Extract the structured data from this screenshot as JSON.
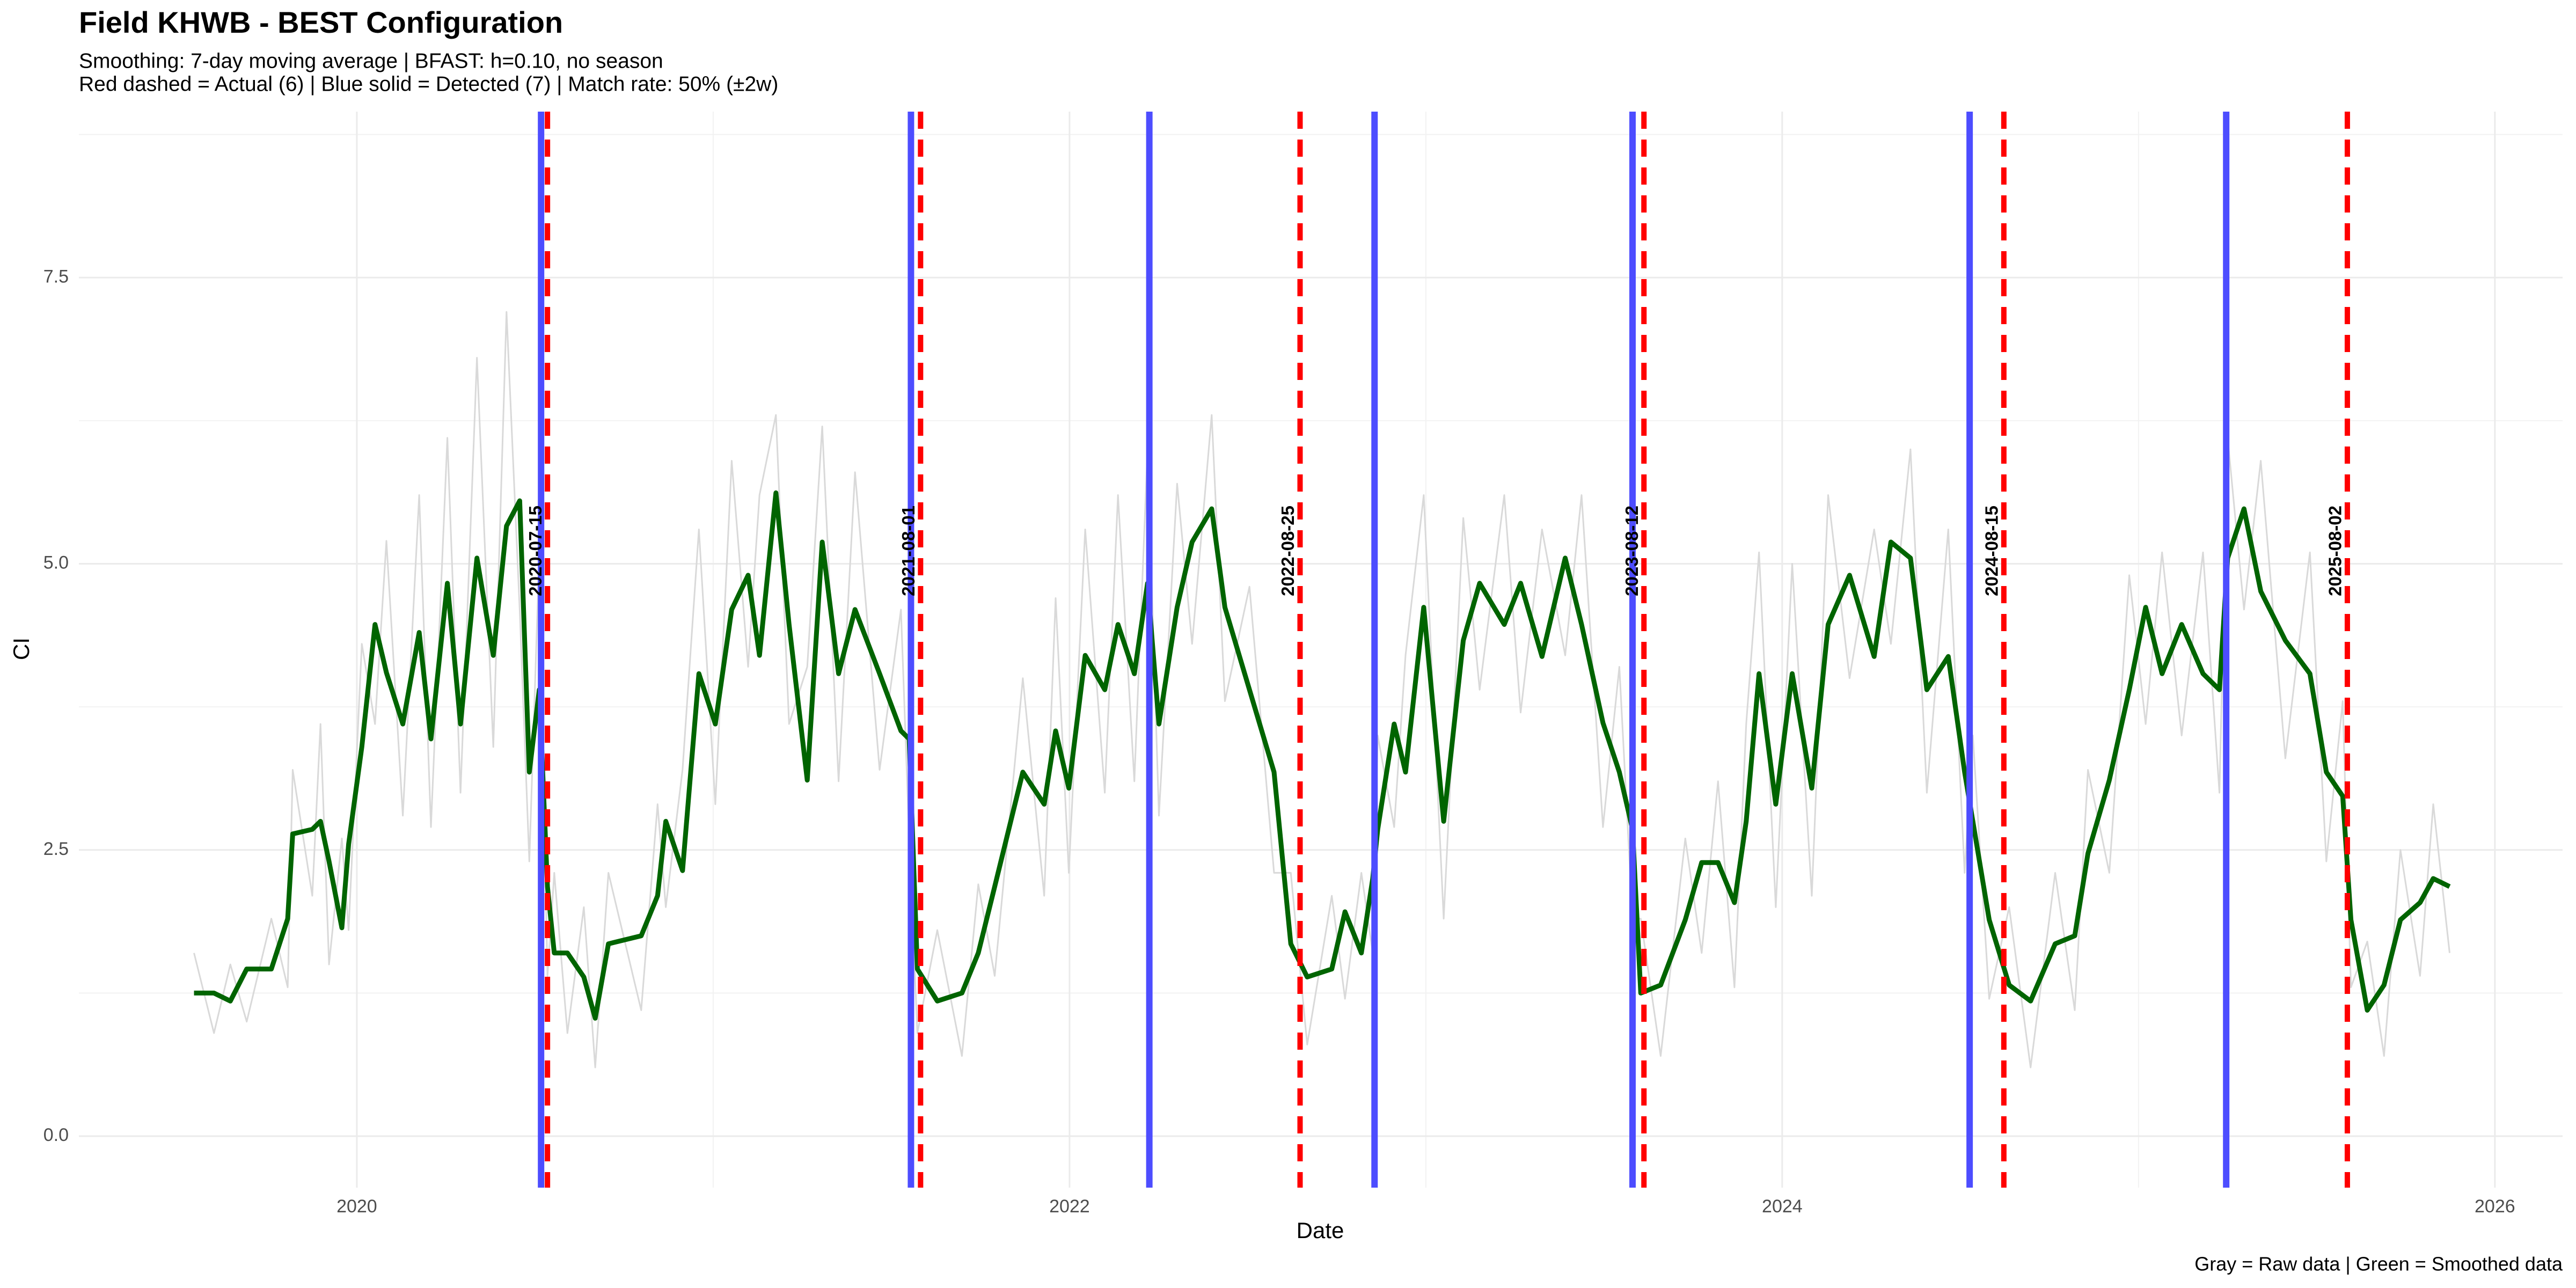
{
  "chart_data": {
    "type": "line",
    "title": "Field KHWB - BEST Configuration",
    "subtitle": [
      "Smoothing: 7-day moving average | BFAST: h=0.10, no season",
      "Red dashed = Actual (6) | Blue solid = Detected (7) | Match rate: 50% (±2w)"
    ],
    "caption": "Gray = Raw data | Green = Smoothed data",
    "xlabel": "Date",
    "ylabel": "CI",
    "xlim": [
      2019.22,
      2026.19
    ],
    "ylim": [
      -0.45,
      8.95
    ],
    "xticks": [
      2020,
      2022,
      2024,
      2026
    ],
    "yticks": [
      {
        "value": 0,
        "label": "0.0"
      },
      2.5,
      {
        "value": 5,
        "label": "5.0"
      },
      7.5
    ],
    "x_minor_ticks": [
      2021,
      2023,
      2025
    ],
    "y_minor_ticks": [
      1.25,
      3.75,
      6.25,
      8.75
    ],
    "grid": true,
    "x": [
      2019.543,
      2019.599,
      2019.645,
      2019.691,
      2019.76,
      2019.806,
      2019.82,
      2019.875,
      2019.898,
      2019.922,
      2019.958,
      2019.977,
      2020.014,
      2020.051,
      2020.083,
      2020.129,
      2020.175,
      2020.208,
      2020.254,
      2020.291,
      2020.337,
      2020.383,
      2020.42,
      2020.457,
      2020.484,
      2020.512,
      2020.535,
      2020.554,
      2020.591,
      2020.637,
      2020.669,
      2020.706,
      2020.798,
      2020.844,
      2020.867,
      2020.914,
      2020.96,
      2021.006,
      2021.052,
      2021.098,
      2021.13,
      2021.176,
      2021.213,
      2021.264,
      2021.306,
      2021.352,
      2021.398,
      2021.467,
      2021.527,
      2021.55,
      2021.573,
      2021.629,
      2021.698,
      2021.744,
      2021.79,
      2021.869,
      2021.929,
      2021.961,
      2021.998,
      2022.044,
      2022.099,
      2022.136,
      2022.182,
      2022.219,
      2022.251,
      2022.302,
      2022.344,
      2022.399,
      2022.436,
      2022.505,
      2022.574,
      2022.621,
      2022.667,
      2022.736,
      2022.773,
      2022.819,
      2022.851,
      2022.865,
      2022.911,
      2022.943,
      2022.994,
      2023.05,
      2023.105,
      2023.151,
      2023.22,
      2023.266,
      2023.326,
      2023.391,
      2023.437,
      2023.497,
      2023.543,
      2023.58,
      2023.603,
      2023.659,
      2023.728,
      2023.774,
      2023.82,
      2023.866,
      2023.899,
      2023.935,
      2023.982,
      2024.028,
      2024.083,
      2024.129,
      2024.189,
      2024.258,
      2024.305,
      2024.36,
      2024.406,
      2024.466,
      2024.512,
      2024.535,
      2024.581,
      2024.637,
      2024.697,
      2024.766,
      2024.821,
      2024.858,
      2024.918,
      2024.974,
      2025.02,
      2025.066,
      2025.121,
      2025.181,
      2025.227,
      2025.25,
      2025.296,
      2025.343,
      2025.412,
      2025.481,
      2025.527,
      2025.573,
      2025.596,
      2025.642,
      2025.689,
      2025.735,
      2025.79,
      2025.827,
      2025.873
    ],
    "series": [
      {
        "color": "#d9d9d9",
        "values": [
          1.6,
          0.9,
          1.5,
          1.0,
          1.9,
          1.3,
          3.2,
          2.1,
          3.6,
          1.5,
          2.6,
          1.8,
          4.3,
          3.6,
          5.2,
          2.8,
          5.6,
          2.7,
          6.1,
          3.0,
          6.8,
          3.4,
          7.2,
          4.6,
          2.4,
          5.1,
          1.4,
          2.3,
          0.9,
          2.0,
          0.6,
          2.3,
          1.1,
          2.9,
          2.0,
          3.2,
          5.3,
          2.9,
          5.9,
          4.1,
          5.6,
          6.3,
          3.6,
          4.1,
          6.2,
          3.1,
          5.8,
          3.2,
          4.6,
          2.6,
          0.9,
          1.8,
          0.7,
          2.2,
          1.4,
          4.0,
          2.1,
          4.7,
          2.3,
          5.3,
          3.0,
          5.6,
          3.1,
          6.0,
          2.8,
          5.7,
          4.3,
          6.3,
          3.8,
          4.8,
          2.3,
          2.3,
          0.8,
          2.1,
          1.2,
          2.3,
          1.6,
          3.5,
          2.7,
          4.2,
          5.6,
          1.9,
          5.4,
          3.9,
          5.6,
          3.7,
          5.3,
          4.2,
          5.6,
          2.7,
          4.1,
          1.9,
          1.9,
          0.7,
          2.6,
          1.6,
          3.1,
          1.3,
          3.6,
          5.1,
          2.0,
          5.0,
          2.1,
          5.6,
          4.0,
          5.3,
          4.3,
          6.0,
          3.0,
          5.3,
          2.3,
          3.5,
          1.2,
          2.0,
          0.6,
          2.3,
          1.1,
          3.2,
          2.3,
          4.9,
          3.6,
          5.1,
          3.5,
          5.1,
          3.0,
          6.1,
          4.6,
          5.9,
          3.3,
          5.1,
          2.4,
          3.8,
          1.3,
          1.7,
          0.7,
          2.5,
          1.4,
          2.9,
          1.6
        ]
      },
      {
        "color": "#006400",
        "values": [
          1.25,
          1.25,
          1.18,
          1.46,
          1.46,
          1.9,
          2.64,
          2.68,
          2.75,
          2.4,
          1.82,
          2.55,
          3.4,
          4.47,
          4.05,
          3.6,
          4.4,
          3.47,
          4.83,
          3.6,
          5.05,
          4.2,
          5.33,
          5.55,
          3.18,
          3.9,
          2.18,
          1.6,
          1.6,
          1.39,
          1.03,
          1.68,
          1.75,
          2.1,
          2.75,
          2.32,
          4.04,
          3.6,
          4.6,
          4.9,
          4.2,
          5.62,
          4.47,
          3.11,
          5.19,
          4.04,
          4.6,
          4.04,
          3.54,
          3.47,
          1.46,
          1.18,
          1.25,
          1.6,
          2.18,
          3.18,
          2.9,
          3.54,
          3.04,
          4.2,
          3.9,
          4.47,
          4.04,
          4.83,
          3.6,
          4.62,
          5.19,
          5.48,
          4.62,
          3.9,
          3.18,
          1.68,
          1.39,
          1.46,
          1.96,
          1.6,
          2.25,
          2.68,
          3.6,
          3.18,
          4.62,
          2.75,
          4.33,
          4.83,
          4.47,
          4.83,
          4.19,
          5.05,
          4.47,
          3.61,
          3.18,
          2.68,
          1.25,
          1.32,
          1.89,
          2.39,
          2.39,
          2.04,
          2.75,
          4.04,
          2.9,
          4.04,
          3.04,
          4.47,
          4.9,
          4.19,
          5.19,
          5.05,
          3.9,
          4.19,
          3.18,
          2.75,
          1.89,
          1.32,
          1.18,
          1.68,
          1.75,
          2.47,
          3.11,
          3.9,
          4.62,
          4.04,
          4.47,
          4.04,
          3.9,
          5.05,
          5.48,
          4.76,
          4.33,
          4.04,
          3.18,
          2.97,
          1.89,
          1.1,
          1.32,
          1.89,
          2.04,
          2.25,
          2.18
        ]
      }
    ],
    "detected_breaks": {
      "color": "#4d4dff",
      "x": [
        2020.517,
        2021.555,
        2022.224,
        2022.856,
        2023.58,
        2024.526,
        2025.246
      ]
    },
    "actual_breaks": {
      "color": "#ff0000",
      "x": [
        {
          "value": 2020.535,
          "label": "2020-07-15"
        },
        {
          "value": 2021.582,
          "label": "2021-08-01"
        },
        {
          "value": 2022.647,
          "label": "2022-08-25"
        },
        {
          "value": 2023.612,
          "label": "2023-08-12"
        },
        {
          "value": 2024.622,
          "label": "2024-08-15"
        },
        {
          "value": 2025.586,
          "label": "2025-08-02"
        }
      ]
    }
  }
}
